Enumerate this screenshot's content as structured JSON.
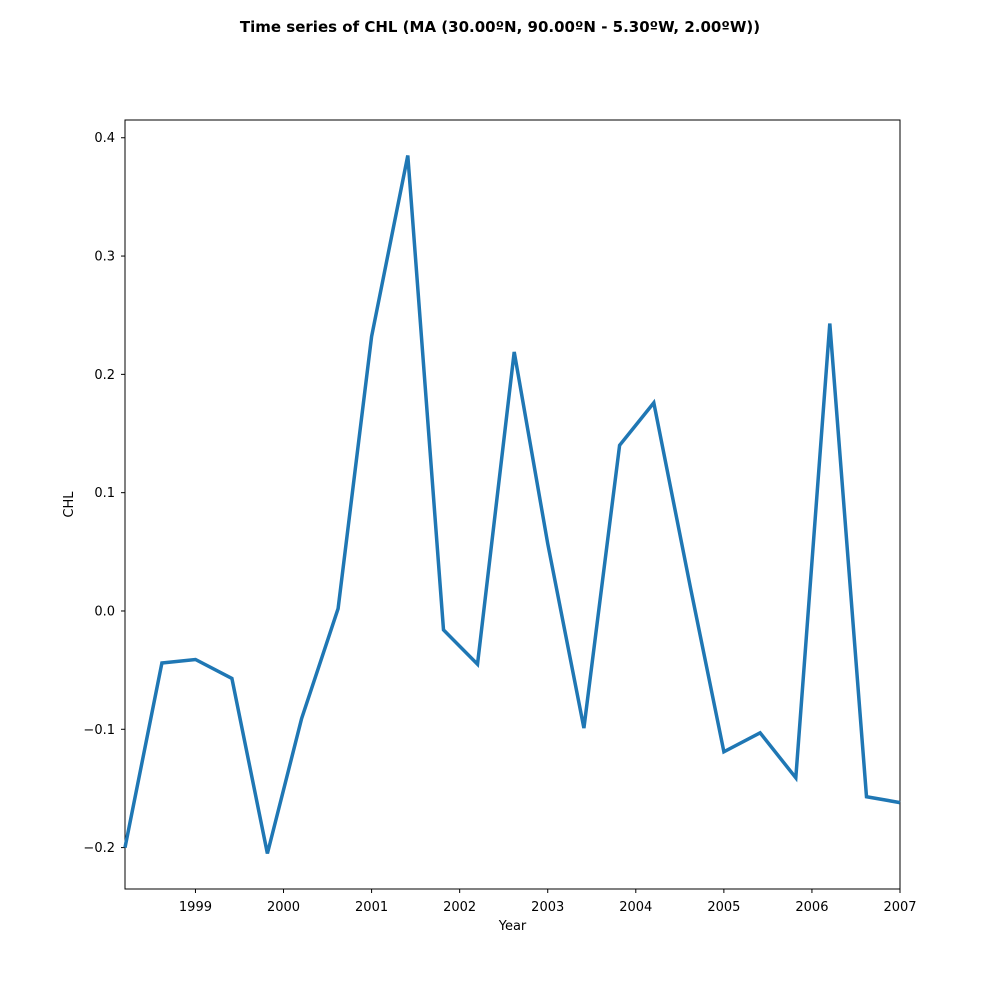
{
  "chart_data": {
    "type": "line",
    "title": "Time series of CHL (MA (30.00ºN, 90.00ºN - 5.30ºW, 2.00ºW))",
    "xlabel": "Year",
    "ylabel": "CHL",
    "xlim": [
      "1998-03-15",
      "2007-01-01"
    ],
    "ylim": [
      -0.235,
      0.415
    ],
    "xticks": [
      "1999",
      "2000",
      "2001",
      "2002",
      "2003",
      "2004",
      "2005",
      "2006",
      "2007"
    ],
    "yticks": [
      -0.2,
      -0.1,
      0.0,
      0.1,
      0.2,
      0.3,
      0.4
    ],
    "ytick_labels": [
      "−0.2",
      "−0.1",
      "0.0",
      "0.1",
      "0.2",
      "0.3",
      "0.4"
    ],
    "grid": false,
    "line_color": "#1f77b4",
    "series": [
      {
        "x": [
          "1998-03-15",
          "1998-08-15",
          "1999-01-01",
          "1999-06-01",
          "1999-10-26",
          "2000-03-16",
          "2000-08-15",
          "2001-01-01",
          "2001-05-31",
          "2001-10-26",
          "2002-03-16",
          "2002-08-15",
          "2003-01-01",
          "2003-05-31",
          "2003-10-26",
          "2004-03-16",
          "2004-08-15",
          "2005-01-01",
          "2005-05-31",
          "2005-10-26",
          "2006-03-16",
          "2006-08-15",
          "2007-01-01"
        ],
        "values": [
          -0.2,
          -0.044,
          -0.041,
          -0.057,
          -0.205,
          -0.091,
          0.002,
          0.232,
          0.385,
          -0.016,
          -0.045,
          0.219,
          0.057,
          -0.099,
          0.14,
          0.176,
          0.02,
          -0.119,
          -0.103,
          -0.141,
          0.243,
          -0.157,
          -0.162
        ]
      }
    ]
  }
}
